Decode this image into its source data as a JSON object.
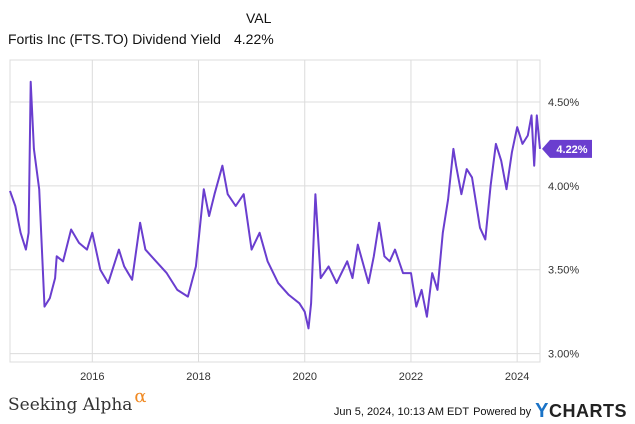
{
  "legend": {
    "column_header": "VAL",
    "series_name": "Fortis Inc (FTS.TO) Dividend Yield",
    "series_value": "4.22%"
  },
  "colors": {
    "line": "#6a3ecf",
    "grid": "#dcdcdc",
    "axis_text": "#333333"
  },
  "footer": {
    "brand": "Seeking Alpha",
    "brand_mark": "α",
    "timestamp": "Jun 5, 2024, 10:13 AM EDT",
    "powered_by": "Powered by",
    "logo_letter": "Y",
    "logo_text": "CHARTS"
  },
  "chart_data": {
    "type": "line",
    "title": "",
    "xlabel": "",
    "ylabel": "",
    "xlim": [
      2014.45,
      2024.43
    ],
    "ylim": [
      2.95,
      4.75
    ],
    "grid": true,
    "y_axis_side": "right",
    "x_ticks": [
      2016,
      2018,
      2020,
      2022,
      2024
    ],
    "x_tick_labels": [
      "2016",
      "2018",
      "2020",
      "2022",
      "2024"
    ],
    "y_ticks": [
      3.0,
      3.5,
      4.0,
      4.5
    ],
    "y_tick_labels": [
      "3.00%",
      "3.50%",
      "4.00%",
      "4.50%"
    ],
    "last_value_label": "4.22%",
    "series": [
      {
        "name": "Fortis Inc (FTS.TO) Dividend Yield",
        "x": [
          2014.45,
          2014.55,
          2014.65,
          2014.75,
          2014.8,
          2014.84,
          2014.9,
          2015.0,
          2015.1,
          2015.2,
          2015.3,
          2015.33,
          2015.45,
          2015.6,
          2015.75,
          2015.9,
          2016.0,
          2016.15,
          2016.3,
          2016.5,
          2016.6,
          2016.75,
          2016.9,
          2017.0,
          2017.2,
          2017.4,
          2017.6,
          2017.8,
          2017.95,
          2018.1,
          2018.2,
          2018.3,
          2018.45,
          2018.55,
          2018.7,
          2018.85,
          2019.0,
          2019.15,
          2019.3,
          2019.5,
          2019.7,
          2019.9,
          2020.0,
          2020.07,
          2020.12,
          2020.2,
          2020.3,
          2020.45,
          2020.6,
          2020.8,
          2020.9,
          2021.0,
          2021.2,
          2021.3,
          2021.4,
          2021.5,
          2021.6,
          2021.7,
          2021.85,
          2022.0,
          2022.1,
          2022.2,
          2022.3,
          2022.4,
          2022.5,
          2022.6,
          2022.7,
          2022.8,
          2022.85,
          2022.95,
          2023.05,
          2023.15,
          2023.3,
          2023.4,
          2023.5,
          2023.6,
          2023.7,
          2023.8,
          2023.9,
          2024.0,
          2024.1,
          2024.2,
          2024.27,
          2024.32,
          2024.37,
          2024.43
        ],
        "values": [
          3.97,
          3.88,
          3.72,
          3.62,
          3.72,
          4.62,
          4.22,
          3.98,
          3.28,
          3.33,
          3.45,
          3.58,
          3.55,
          3.74,
          3.66,
          3.62,
          3.72,
          3.5,
          3.42,
          3.62,
          3.52,
          3.44,
          3.78,
          3.62,
          3.55,
          3.48,
          3.38,
          3.34,
          3.52,
          3.98,
          3.82,
          3.95,
          4.12,
          3.95,
          3.88,
          3.95,
          3.62,
          3.72,
          3.55,
          3.42,
          3.35,
          3.3,
          3.25,
          3.15,
          3.3,
          3.95,
          3.45,
          3.52,
          3.42,
          3.55,
          3.45,
          3.65,
          3.42,
          3.58,
          3.78,
          3.58,
          3.55,
          3.62,
          3.48,
          3.48,
          3.28,
          3.38,
          3.22,
          3.48,
          3.38,
          3.72,
          3.92,
          4.22,
          4.12,
          3.95,
          4.1,
          4.05,
          3.75,
          3.68,
          4.0,
          4.25,
          4.15,
          3.98,
          4.2,
          4.35,
          4.25,
          4.3,
          4.42,
          4.12,
          4.42,
          4.22
        ]
      }
    ]
  }
}
